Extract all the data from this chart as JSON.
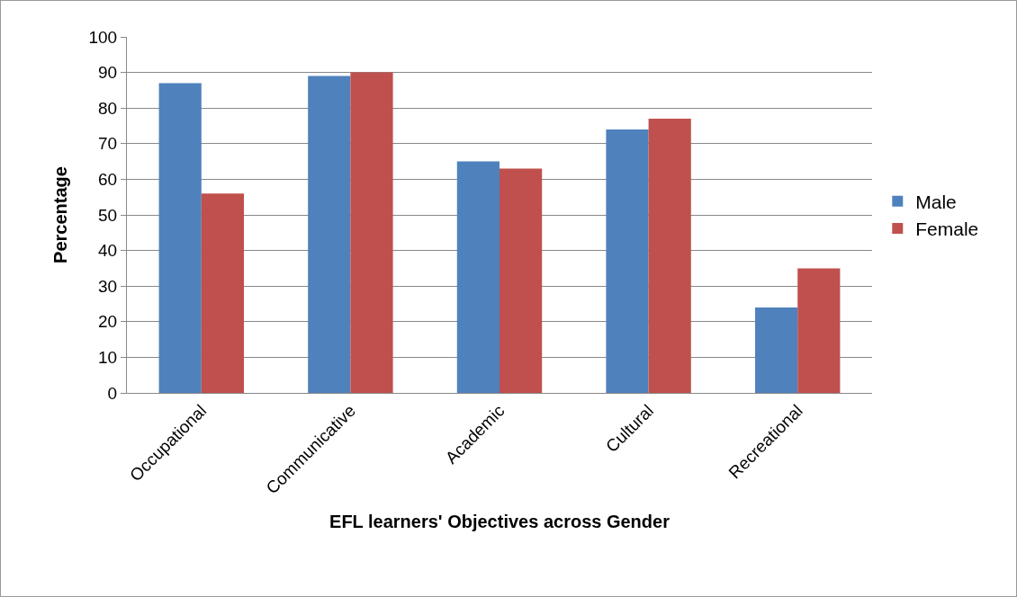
{
  "chart_data": {
    "type": "bar",
    "xlabel": "EFL learners' Objectives across Gender",
    "ylabel": "Percentage",
    "categories": [
      "Occupational",
      "Communicative",
      "Academic",
      "Cultural",
      "Recreational"
    ],
    "series": [
      {
        "name": "Male",
        "color": "#4f81bd",
        "values": [
          87,
          89,
          65,
          74,
          24
        ]
      },
      {
        "name": "Female",
        "color": "#c0504d",
        "values": [
          56,
          90,
          63,
          77,
          35
        ]
      }
    ],
    "ylim": [
      0,
      100
    ],
    "yticks": [
      0,
      10,
      20,
      30,
      40,
      50,
      60,
      70,
      80,
      90,
      100
    ],
    "grid": "y",
    "legend": "right"
  }
}
